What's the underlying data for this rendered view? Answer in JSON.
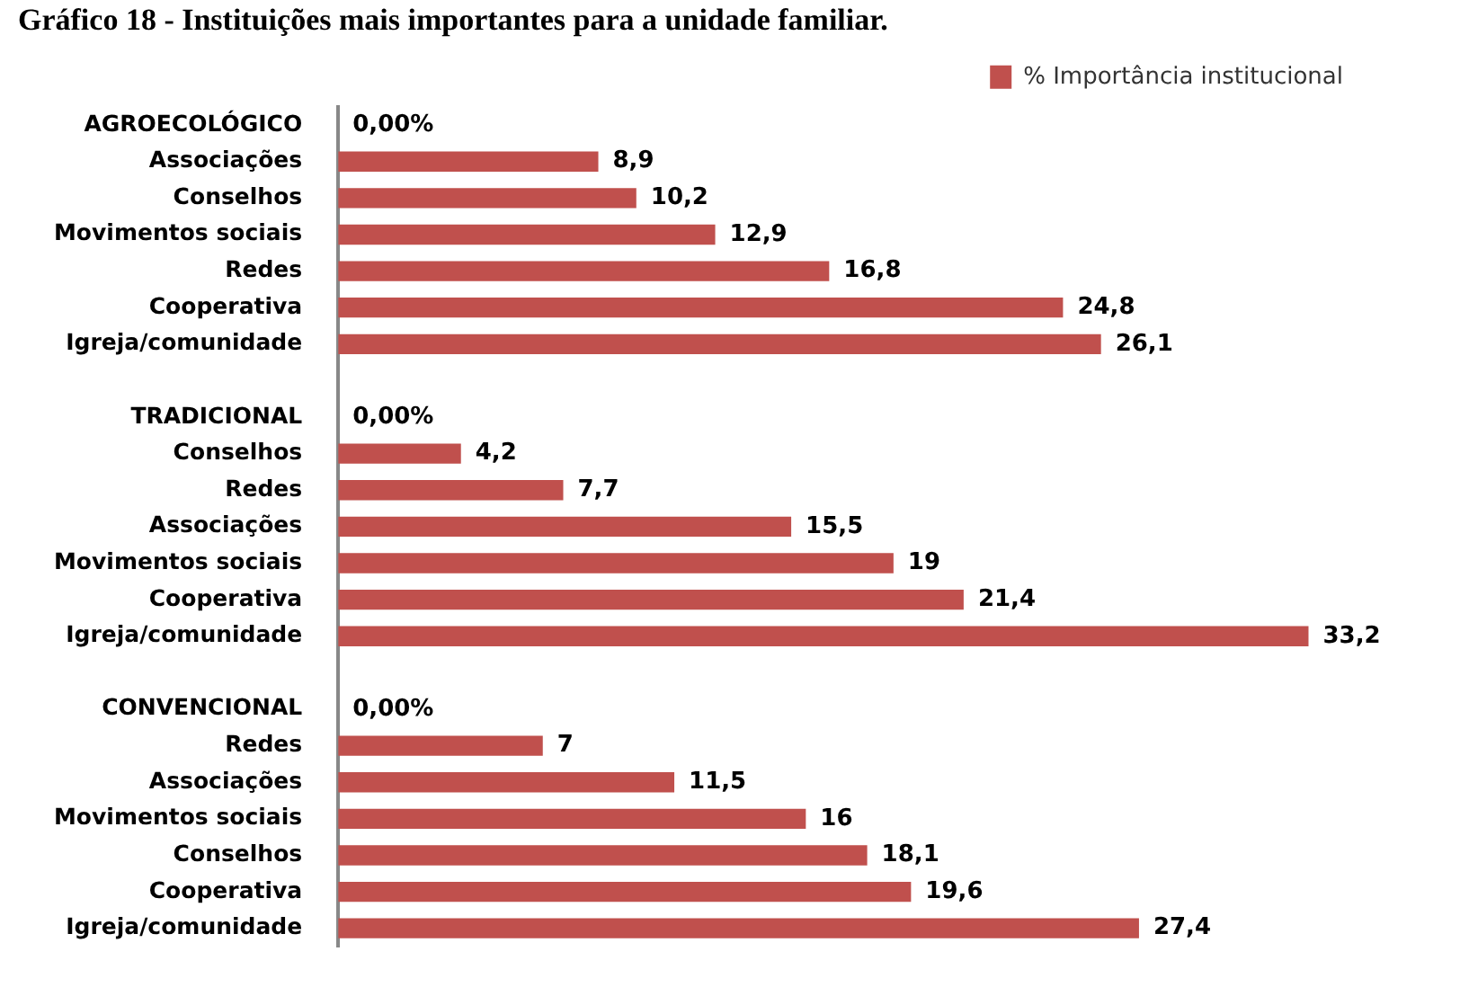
{
  "chart_data": {
    "type": "bar",
    "orientation": "horizontal",
    "title": "Gráfico 18 - Instituições mais importantes para a unidade familiar.",
    "categories": [
      "AGROECOLÓGICO",
      "Associações",
      "Conselhos",
      "Movimentos sociais",
      "Redes",
      "Cooperativa",
      "Igreja/comunidade",
      null,
      "TRADICIONAL",
      "Conselhos",
      "Redes",
      "Associações",
      "Movimentos sociais",
      "Cooperativa",
      "Igreja/comunidade",
      null,
      "CONVENCIONAL",
      "Redes",
      "Associações",
      "Movimentos sociais",
      "Conselhos",
      "Cooperativa",
      "Igreja/comunidade"
    ],
    "series": [
      {
        "name": "% Importância institucional",
        "color": "#c0504d",
        "values": [
          0,
          8.9,
          10.2,
          12.9,
          16.8,
          24.8,
          26.1,
          null,
          0,
          4.2,
          7.7,
          15.5,
          19,
          21.4,
          33.2,
          null,
          0,
          7,
          11.5,
          16,
          18.1,
          19.6,
          27.4
        ],
        "value_labels": [
          "0,00%",
          "8,9",
          "10,2",
          "12,9",
          "16,8",
          "24,8",
          "26,1",
          null,
          "0,00%",
          "4,2",
          "7,7",
          "15,5",
          "19",
          "21,4",
          "33,2",
          null,
          "0,00%",
          "7",
          "11,5",
          "16",
          "18,1",
          "19,6",
          "27,4"
        ]
      }
    ],
    "tick_labels": "y",
    "grid": false,
    "legend": "top right"
  }
}
